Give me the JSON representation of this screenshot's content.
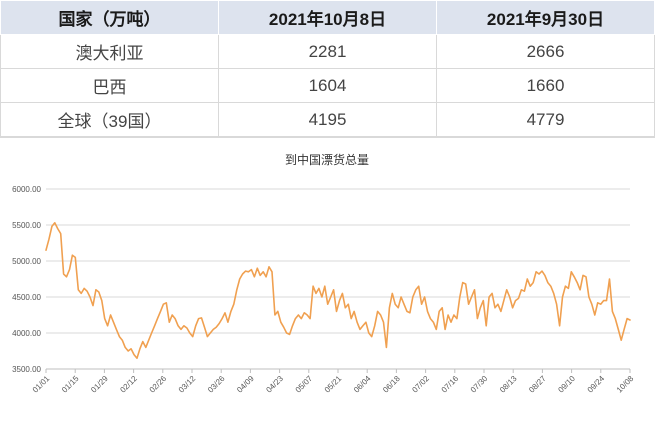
{
  "table": {
    "headers": [
      "国家（万吨）",
      "2021年10月8日",
      "2021年9月30日"
    ],
    "rows": [
      [
        "澳大利亚",
        "2281",
        "2666"
      ],
      [
        "巴西",
        "1604",
        "1660"
      ],
      [
        "全球（39国）",
        "4195",
        "4779"
      ]
    ]
  },
  "chart_data": {
    "type": "line",
    "title": "到中国漂货总量",
    "xlabel": "",
    "ylabel": "",
    "ylim": [
      3500,
      6000
    ],
    "yticks": [
      "6000.00",
      "5500.00",
      "5000.00",
      "4500.00",
      "4000.00",
      "3500.00"
    ],
    "xticks": [
      "01/01",
      "01/15",
      "01/29",
      "02/12",
      "02/26",
      "03/12",
      "03/26",
      "04/09",
      "04/23",
      "05/07",
      "05/21",
      "06/04",
      "06/18",
      "07/02",
      "07/16",
      "07/30",
      "08/13",
      "08/27",
      "09/10",
      "09/24",
      "10/08"
    ],
    "grid": "horizontal",
    "color": "#f0a050",
    "series": [
      {
        "name": "",
        "values": [
          5150,
          5300,
          5480,
          5530,
          5450,
          5380,
          4820,
          4780,
          4880,
          5080,
          5050,
          4600,
          4550,
          4620,
          4580,
          4500,
          4380,
          4600,
          4570,
          4450,
          4200,
          4100,
          4250,
          4150,
          4050,
          3950,
          3900,
          3800,
          3750,
          3780,
          3700,
          3650,
          3780,
          3880,
          3800,
          3900,
          4000,
          4100,
          4200,
          4300,
          4400,
          4420,
          4150,
          4250,
          4200,
          4100,
          4050,
          4100,
          4070,
          4000,
          3950,
          4100,
          4200,
          4210,
          4080,
          3950,
          4000,
          4050,
          4080,
          4130,
          4200,
          4280,
          4150,
          4300,
          4400,
          4600,
          4750,
          4820,
          4860,
          4850,
          4880,
          4780,
          4900,
          4800,
          4850,
          4780,
          4920,
          4850,
          4250,
          4300,
          4150,
          4080,
          4000,
          3980,
          4100,
          4200,
          4250,
          4200,
          4280,
          4250,
          4200,
          4650,
          4550,
          4620,
          4500,
          4650,
          4400,
          4500,
          4600,
          4300,
          4450,
          4550,
          4350,
          4400,
          4200,
          4300,
          4150,
          4050,
          4100,
          4150,
          4000,
          3950,
          4100,
          4300,
          4250,
          4150,
          3800,
          4350,
          4550,
          4400,
          4350,
          4500,
          4400,
          4300,
          4280,
          4500,
          4600,
          4650,
          4400,
          4500,
          4300,
          4200,
          4150,
          4050,
          4300,
          4350,
          4050,
          4250,
          4150,
          4250,
          4200,
          4500,
          4700,
          4680,
          4400,
          4500,
          4600,
          4200,
          4350,
          4450,
          4100,
          4500,
          4550,
          4350,
          4400,
          4300,
          4450,
          4600,
          4500,
          4350,
          4450,
          4480,
          4600,
          4580,
          4750,
          4650,
          4700,
          4850,
          4820,
          4860,
          4800,
          4700,
          4650,
          4550,
          4400,
          4100,
          4500,
          4650,
          4620,
          4850,
          4780,
          4700,
          4600,
          4800,
          4780,
          4500,
          4400,
          4250,
          4420,
          4400,
          4450,
          4450,
          4750,
          4300,
          4200,
          4050,
          3900,
          4050,
          4200,
          4180
        ]
      }
    ]
  }
}
